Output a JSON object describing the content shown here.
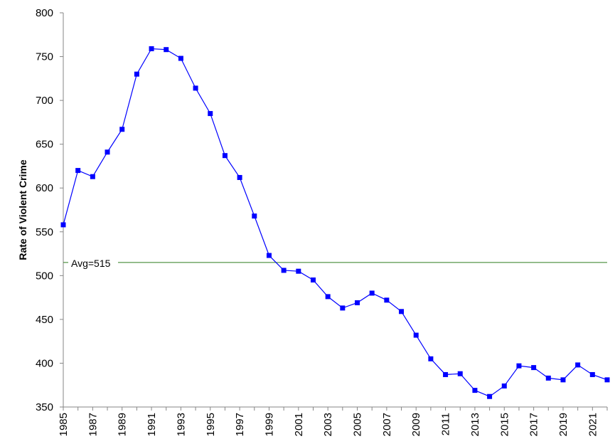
{
  "chart_data": {
    "type": "line",
    "title": "",
    "xlabel": "",
    "ylabel": "Rate of Violent Crime",
    "ylim": [
      350,
      800
    ],
    "yticks": [
      "350",
      "400",
      "450",
      "500",
      "550",
      "600",
      "650",
      "700",
      "750",
      "800"
    ],
    "xtick_labels": [
      "1985",
      "1987",
      "1989",
      "1991",
      "1993",
      "1995",
      "1997",
      "1999",
      "2001",
      "2003",
      "2005",
      "2007",
      "2009",
      "2011",
      "2013",
      "2015",
      "2017",
      "2019",
      "2021"
    ],
    "grid": false,
    "legend": "none",
    "x": [
      1985,
      1986,
      1987,
      1988,
      1989,
      1990,
      1991,
      1992,
      1993,
      1994,
      1995,
      1996,
      1997,
      1998,
      1999,
      2000,
      2001,
      2002,
      2003,
      2004,
      2005,
      2006,
      2007,
      2008,
      2009,
      2010,
      2011,
      2012,
      2013,
      2014,
      2015,
      2016,
      2017,
      2018,
      2019,
      2020,
      2021,
      2022
    ],
    "series": [
      {
        "color": "#0000FF",
        "values": [
          558,
          620,
          613,
          641,
          667,
          730,
          759,
          758,
          748,
          714,
          685,
          637,
          612,
          568,
          523,
          506,
          505,
          495,
          476,
          463,
          469,
          480,
          472,
          459,
          432,
          405,
          387,
          388,
          369,
          362,
          374,
          397,
          395,
          383,
          381,
          398,
          387,
          381
        ]
      }
    ],
    "reference_line": {
      "label": "Avg=515",
      "value": 515,
      "color": "#2E7D1F"
    }
  }
}
